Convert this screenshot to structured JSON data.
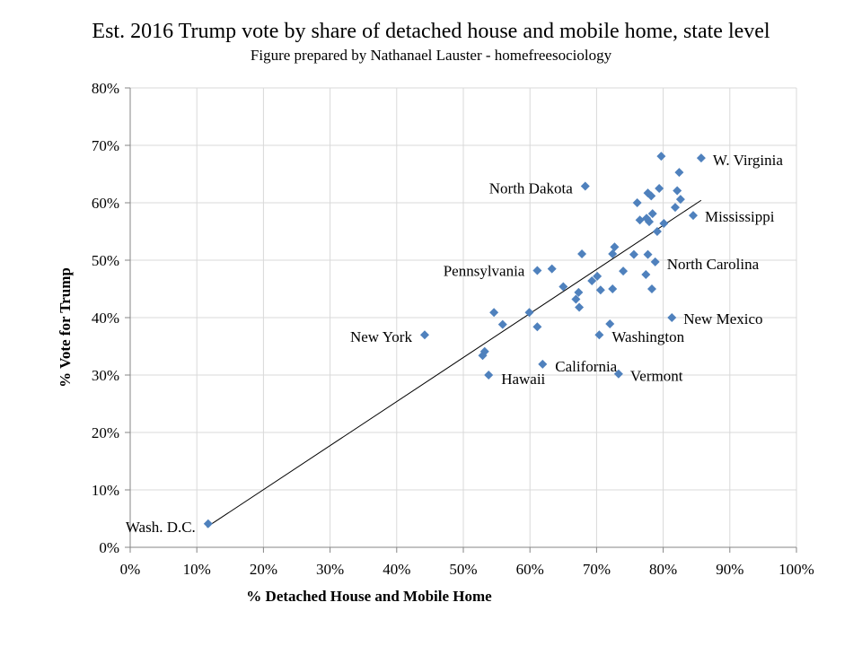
{
  "chart_data": {
    "type": "scatter",
    "title": "Est. 2016 Trump vote by share of detached house and mobile home, state level",
    "subtitle": "Figure prepared by Nathanael Lauster - homefreesociology",
    "xlabel": "% Detached House and Mobile Home",
    "ylabel": "% Vote for Trump",
    "xlim": [
      0,
      100
    ],
    "ylim": [
      0,
      80
    ],
    "x_ticks": [
      "0%",
      "10%",
      "20%",
      "30%",
      "40%",
      "50%",
      "60%",
      "70%",
      "80%",
      "90%",
      "100%"
    ],
    "y_ticks": [
      "0%",
      "10%",
      "20%",
      "30%",
      "40%",
      "50%",
      "60%",
      "70%",
      "80%"
    ],
    "grid": true,
    "marker": "diamond",
    "marker_color": "#4F81BD",
    "trendline": {
      "type": "linear",
      "slope": 0.767,
      "intercept": -5.3,
      "x_range": [
        11.5,
        85.7
      ],
      "color": "#000000"
    },
    "points": [
      {
        "x": 79.7,
        "y": 68.1
      },
      {
        "x": 85.7,
        "y": 67.8,
        "label": "W. Virginia"
      },
      {
        "x": 82.4,
        "y": 65.3
      },
      {
        "x": 68.3,
        "y": 62.9,
        "label": "North Dakota"
      },
      {
        "x": 79.4,
        "y": 62.5
      },
      {
        "x": 82.1,
        "y": 62.1
      },
      {
        "x": 77.7,
        "y": 61.7
      },
      {
        "x": 78.2,
        "y": 61.2
      },
      {
        "x": 82.6,
        "y": 60.6
      },
      {
        "x": 76.1,
        "y": 60.0
      },
      {
        "x": 81.8,
        "y": 59.2
      },
      {
        "x": 78.4,
        "y": 58.1
      },
      {
        "x": 84.5,
        "y": 57.8,
        "label": "Mississippi"
      },
      {
        "x": 76.5,
        "y": 57.0
      },
      {
        "x": 77.5,
        "y": 57.3
      },
      {
        "x": 77.9,
        "y": 56.7
      },
      {
        "x": 80.1,
        "y": 56.4
      },
      {
        "x": 79.1,
        "y": 55.0
      },
      {
        "x": 72.7,
        "y": 52.3
      },
      {
        "x": 72.4,
        "y": 51.1
      },
      {
        "x": 67.8,
        "y": 51.1
      },
      {
        "x": 75.6,
        "y": 51.0
      },
      {
        "x": 77.7,
        "y": 51.0
      },
      {
        "x": 78.8,
        "y": 49.7,
        "label": "North Carolina"
      },
      {
        "x": 61.1,
        "y": 48.2,
        "label": "Pennsylvania"
      },
      {
        "x": 63.3,
        "y": 48.5
      },
      {
        "x": 74.0,
        "y": 48.1
      },
      {
        "x": 77.4,
        "y": 47.5
      },
      {
        "x": 65.0,
        "y": 45.4
      },
      {
        "x": 70.1,
        "y": 47.2
      },
      {
        "x": 69.3,
        "y": 46.4
      },
      {
        "x": 70.6,
        "y": 44.8
      },
      {
        "x": 72.4,
        "y": 45.0
      },
      {
        "x": 78.3,
        "y": 45.0
      },
      {
        "x": 67.3,
        "y": 44.4
      },
      {
        "x": 66.9,
        "y": 43.2
      },
      {
        "x": 67.4,
        "y": 41.8
      },
      {
        "x": 59.9,
        "y": 40.9
      },
      {
        "x": 81.3,
        "y": 40.0,
        "label": "New Mexico"
      },
      {
        "x": 44.2,
        "y": 37.0,
        "label": "New York"
      },
      {
        "x": 54.6,
        "y": 40.9
      },
      {
        "x": 55.9,
        "y": 38.8
      },
      {
        "x": 61.1,
        "y": 38.4
      },
      {
        "x": 52.9,
        "y": 33.4
      },
      {
        "x": 53.2,
        "y": 34.1
      },
      {
        "x": 53.8,
        "y": 30.0,
        "label": "Hawaii"
      },
      {
        "x": 61.9,
        "y": 31.9,
        "label": "California"
      },
      {
        "x": 70.4,
        "y": 37.0,
        "label": "Washington"
      },
      {
        "x": 72.0,
        "y": 38.9
      },
      {
        "x": 73.3,
        "y": 30.2,
        "label": "Vermont"
      },
      {
        "x": 11.7,
        "y": 4.1,
        "label": "Wash.  D.C."
      }
    ]
  }
}
